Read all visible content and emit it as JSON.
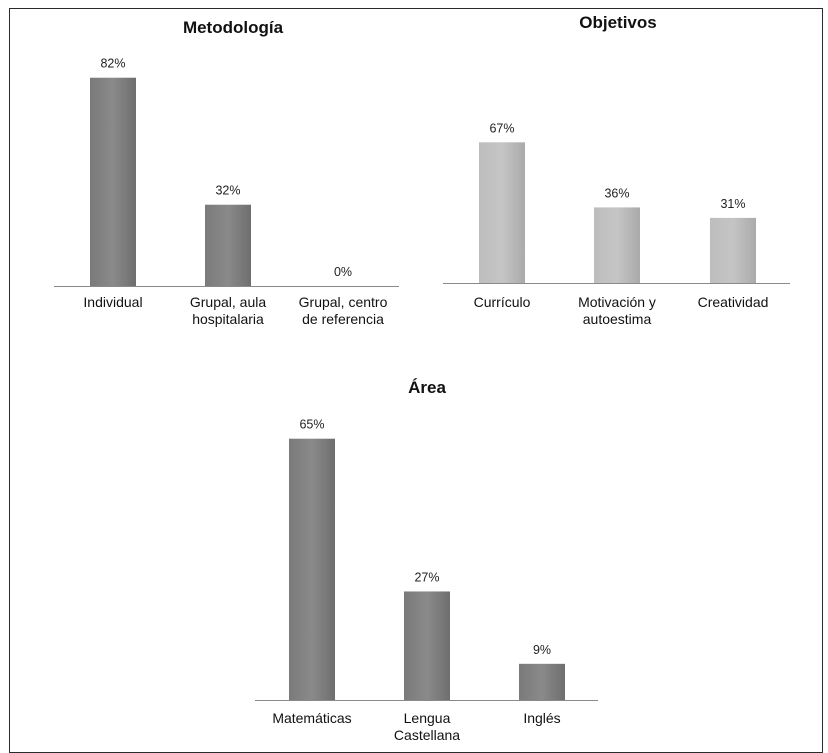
{
  "chart_data": [
    {
      "type": "bar",
      "title": "Metodología",
      "categories": [
        "Individual",
        "Grupal, aula hospitalaria",
        "Grupal, centro de referencia"
      ],
      "category_lines": [
        [
          "Individual"
        ],
        [
          "Grupal, aula",
          "hospitalaria"
        ],
        [
          "Grupal, centro",
          "de referencia"
        ]
      ],
      "values": [
        82,
        32,
        0
      ],
      "value_labels": [
        "82%",
        "32%",
        "0%"
      ],
      "unit": "%",
      "bar_color": "#7a7a7a",
      "ylim": [
        0,
        100
      ],
      "grid": false,
      "legend": "none"
    },
    {
      "type": "bar",
      "title": "Objetivos",
      "categories": [
        "Currículo",
        "Motivación y autoestima",
        "Creatividad"
      ],
      "category_lines": [
        [
          "Currículo"
        ],
        [
          "Motivación y",
          "autoestima"
        ],
        [
          "Creatividad"
        ]
      ],
      "values": [
        67,
        36,
        31
      ],
      "value_labels": [
        "67%",
        "36%",
        "31%"
      ],
      "unit": "%",
      "bar_color": "#bdbdbd",
      "ylim": [
        0,
        100
      ],
      "grid": false,
      "legend": "none"
    },
    {
      "type": "bar",
      "title": "Área",
      "categories": [
        "Matemáticas",
        "Lengua Castellana",
        "Inglés"
      ],
      "category_lines": [
        [
          "Matemáticas"
        ],
        [
          "Lengua",
          "Castellana"
        ],
        [
          "Inglés"
        ]
      ],
      "values": [
        65,
        27,
        9
      ],
      "value_labels": [
        "65%",
        "27%",
        "9%"
      ],
      "unit": "%",
      "bar_color": "#7a7a7a",
      "ylim": [
        0,
        100
      ],
      "grid": false,
      "legend": "none"
    }
  ]
}
